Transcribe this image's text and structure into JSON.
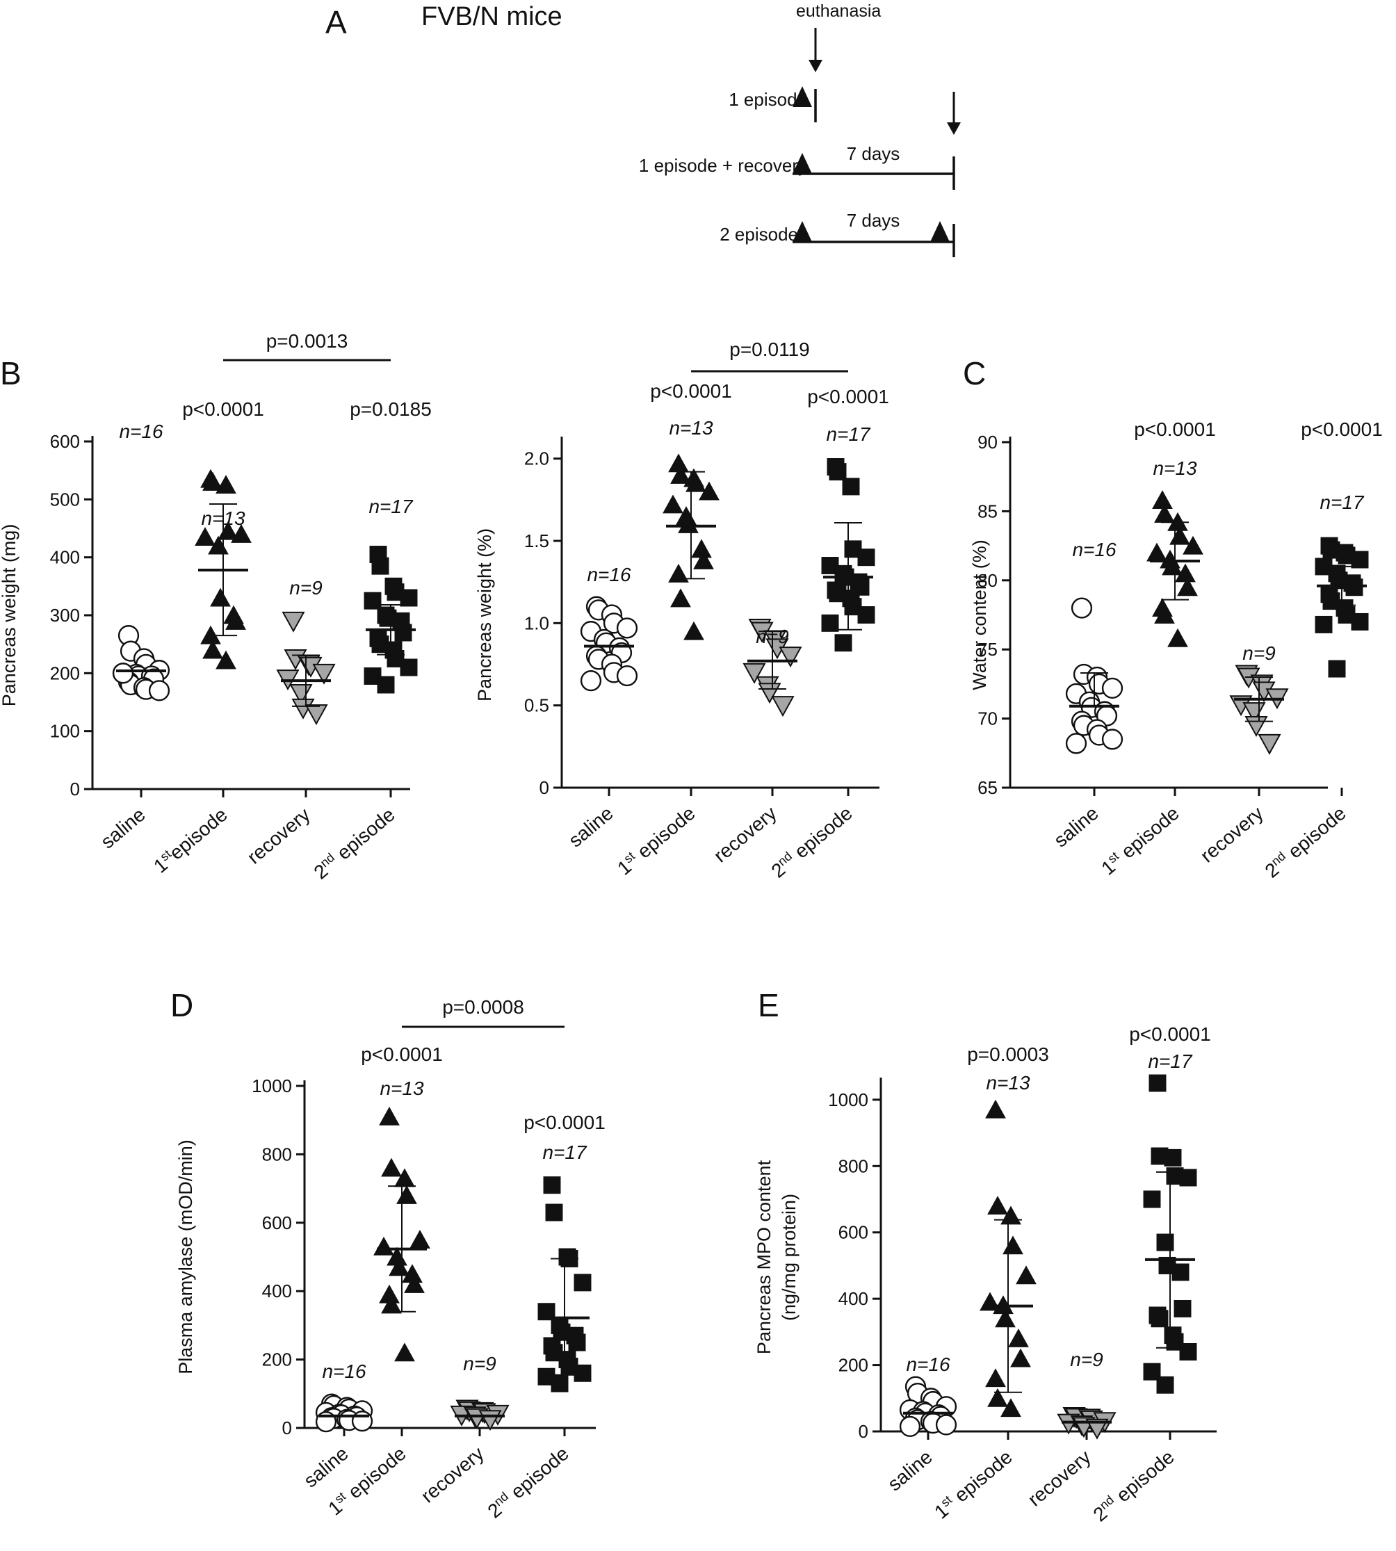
{
  "figure": {
    "colors": {
      "ink": "#111111",
      "gray": "#a6a6a6",
      "open": "#ffffff"
    },
    "panel_a": {
      "letter": "A",
      "title": "FVB/N mice",
      "euthanasia_label": "euthanasia",
      "rows": [
        {
          "label": "1 episode",
          "interval": ""
        },
        {
          "label": "1 episode + recovery",
          "interval": "7 days"
        },
        {
          "label": "2 episodes",
          "interval": "7 days"
        }
      ]
    }
  },
  "chart_data": [
    {
      "id": "B1",
      "type": "scatter",
      "letter": "B",
      "ylabel": "Pancreas weight (mg)",
      "xlabel": "",
      "ylim": [
        0,
        600
      ],
      "yticks": [
        "0",
        "100",
        "200",
        "300",
        "400",
        "500",
        "600"
      ],
      "categories": [
        {
          "label": "saline",
          "sup": "",
          "rest": ""
        },
        {
          "label": "1",
          "sup": "st",
          "rest": "episode"
        },
        {
          "label": "recovery",
          "sup": "",
          "rest": ""
        },
        {
          "label": "2",
          "sup": "nd",
          "rest": " episode"
        }
      ],
      "groups": [
        {
          "name": "saline",
          "marker": "circle",
          "n": "n=16",
          "mean": 204,
          "sd_low": 204,
          "sd_high": 204,
          "pvalue": "",
          "values": [
            265,
            238,
            225,
            215,
            205,
            200,
            198,
            195,
            195,
            190,
            185,
            180,
            175,
            172,
            170,
            200
          ]
        },
        {
          "name": "1st episode",
          "marker": "triangle",
          "n": "n=13",
          "mean": 378,
          "sd_low": 265,
          "sd_high": 492,
          "pvalue": "p<0.0001",
          "values": [
            535,
            530,
            525,
            445,
            440,
            435,
            420,
            330,
            300,
            290,
            265,
            240,
            222
          ]
        },
        {
          "name": "recovery",
          "marker": "triangle-down",
          "n": "n=9",
          "mean": 187,
          "sd_low": 143,
          "sd_high": 231,
          "pvalue": "",
          "values": [
            290,
            225,
            215,
            212,
            200,
            190,
            165,
            140,
            130
          ]
        },
        {
          "name": "2nd episode",
          "marker": "square",
          "n": "n=17",
          "mean": 275,
          "sd_low": 232,
          "sd_high": 318,
          "pvalue": "p=0.0185",
          "values": [
            405,
            385,
            350,
            340,
            330,
            325,
            300,
            295,
            290,
            270,
            260,
            250,
            240,
            225,
            210,
            195,
            180
          ]
        }
      ],
      "comparisons": [
        {
          "from": 1,
          "to": 3,
          "label": "p=0.0013"
        }
      ]
    },
    {
      "id": "B2",
      "type": "scatter",
      "letter": "",
      "ylabel": "Pancreas weight (%)",
      "xlabel": "",
      "ylim": [
        0,
        2.1
      ],
      "yticks": [
        "0",
        "0.5",
        "1.0",
        "1.5",
        "2.0"
      ],
      "categories": [
        {
          "label": "saline",
          "sup": "",
          "rest": ""
        },
        {
          "label": "1",
          "sup": "st",
          "rest": " episode"
        },
        {
          "label": "recovery",
          "sup": "",
          "rest": ""
        },
        {
          "label": "2",
          "sup": "nd",
          "rest": " episode"
        }
      ],
      "groups": [
        {
          "name": "saline",
          "marker": "circle",
          "n": "n=16",
          "mean": 0.86,
          "sd_low": 0.86,
          "sd_high": 0.86,
          "pvalue": "",
          "values": [
            1.1,
            1.08,
            1.05,
            1.0,
            0.97,
            0.95,
            0.9,
            0.88,
            0.85,
            0.82,
            0.8,
            0.78,
            0.75,
            0.7,
            0.68,
            0.65
          ]
        },
        {
          "name": "1st episode",
          "marker": "triangle",
          "n": "n=13",
          "mean": 1.59,
          "sd_low": 1.27,
          "sd_high": 1.92,
          "pvalue": "p<0.0001",
          "values": [
            1.97,
            1.9,
            1.88,
            1.85,
            1.8,
            1.72,
            1.65,
            1.6,
            1.45,
            1.38,
            1.3,
            1.15,
            0.95
          ]
        },
        {
          "name": "recovery",
          "marker": "triangle-down",
          "n": "n=9",
          "mean": 0.77,
          "sd_low": 0.6,
          "sd_high": 0.95,
          "pvalue": "",
          "values": [
            0.97,
            0.95,
            0.9,
            0.85,
            0.8,
            0.7,
            0.62,
            0.58,
            0.5
          ]
        },
        {
          "name": "2nd episode",
          "marker": "square",
          "n": "n=17",
          "mean": 1.28,
          "sd_low": 0.96,
          "sd_high": 1.61,
          "pvalue": "p<0.0001",
          "values": [
            1.95,
            1.92,
            1.83,
            1.45,
            1.4,
            1.35,
            1.3,
            1.28,
            1.25,
            1.22,
            1.2,
            1.18,
            1.15,
            1.1,
            1.05,
            1.0,
            0.88
          ]
        }
      ],
      "comparisons": [
        {
          "from": 1,
          "to": 3,
          "label": "p=0.0119"
        }
      ]
    },
    {
      "id": "C",
      "type": "scatter",
      "letter": "C",
      "ylabel": "Water content (%)",
      "xlabel": "",
      "ylim": [
        65,
        90
      ],
      "yticks": [
        "65",
        "70",
        "75",
        "80",
        "85",
        "90"
      ],
      "categories": [
        {
          "label": "saline",
          "sup": "",
          "rest": ""
        },
        {
          "label": "1",
          "sup": "st",
          "rest": " episode"
        },
        {
          "label": "recovery",
          "sup": "",
          "rest": ""
        },
        {
          "label": "2",
          "sup": "nd",
          "rest": " episode"
        }
      ],
      "groups": [
        {
          "name": "saline",
          "marker": "circle",
          "n": "n=16",
          "mean": 70.9,
          "sd_low": 70.9,
          "sd_high": 73.3,
          "pvalue": "",
          "values": [
            78,
            73.2,
            73,
            72.5,
            72.2,
            71.8,
            71.2,
            70.8,
            70.5,
            70.2,
            69.8,
            69.5,
            69.2,
            68.8,
            68.5,
            68.2
          ]
        },
        {
          "name": "1st episode",
          "marker": "triangle",
          "n": "n=13",
          "mean": 81.4,
          "sd_low": 78.6,
          "sd_high": 84.2,
          "pvalue": "p<0.0001",
          "values": [
            85.8,
            84.8,
            84.2,
            83.2,
            82.5,
            82,
            81.5,
            81,
            80.5,
            79.5,
            78,
            77.5,
            75.8
          ]
        },
        {
          "name": "recovery",
          "marker": "triangle-down",
          "n": "n=9",
          "mean": 71.4,
          "sd_low": 69.8,
          "sd_high": 73,
          "pvalue": "",
          "values": [
            73.2,
            73,
            72.5,
            72,
            71.5,
            71,
            70.5,
            69.5,
            68.2
          ]
        },
        {
          "name": "2nd episode",
          "marker": "square",
          "n": "n=17",
          "mean": 79.6,
          "sd_low": 78.2,
          "sd_high": 81,
          "pvalue": "p<0.0001",
          "values": [
            82.5,
            82.2,
            82,
            81.8,
            81.5,
            81,
            80.5,
            80,
            79.8,
            79.5,
            79,
            78.5,
            78,
            77.5,
            77,
            76.8,
            73.6
          ]
        }
      ],
      "comparisons": []
    },
    {
      "id": "D",
      "type": "scatter",
      "letter": "D",
      "ylabel": "Plasma amylase (mOD/min)",
      "xlabel": "",
      "ylim": [
        0,
        1000
      ],
      "yticks": [
        "0",
        "200",
        "400",
        "600",
        "800",
        "1000"
      ],
      "categories": [
        {
          "label": "saline",
          "sup": "",
          "rest": ""
        },
        {
          "label": "1",
          "sup": "st",
          "rest": " episode"
        },
        {
          "label": "recovery",
          "sup": "",
          "rest": ""
        },
        {
          "label": "2",
          "sup": "nd",
          "rest": " episode"
        }
      ],
      "groups": [
        {
          "name": "saline",
          "marker": "circle",
          "n": "n=16",
          "mean": 35,
          "sd_low": 35,
          "sd_high": 35,
          "pvalue": "",
          "values": [
            70,
            65,
            60,
            55,
            50,
            45,
            40,
            38,
            35,
            32,
            30,
            28,
            25,
            22,
            20,
            18
          ]
        },
        {
          "name": "1st episode",
          "marker": "triangle",
          "n": "n=13",
          "mean": 523,
          "sd_low": 340,
          "sd_high": 707,
          "pvalue": "p<0.0001",
          "values": [
            910,
            760,
            730,
            680,
            550,
            530,
            500,
            470,
            450,
            420,
            390,
            360,
            220
          ]
        },
        {
          "name": "recovery",
          "marker": "triangle-down",
          "n": "n=9",
          "mean": 35,
          "sd_low": 35,
          "sd_high": 35,
          "pvalue": "",
          "values": [
            55,
            50,
            48,
            45,
            40,
            38,
            35,
            30,
            25
          ]
        },
        {
          "name": "2nd episode",
          "marker": "square",
          "n": "n=17",
          "mean": 322,
          "sd_low": 155,
          "sd_high": 495,
          "pvalue": "p<0.0001",
          "values": [
            710,
            630,
            500,
            495,
            425,
            340,
            300,
            280,
            270,
            250,
            240,
            220,
            200,
            180,
            160,
            150,
            130
          ]
        }
      ],
      "comparisons": [
        {
          "from": 1,
          "to": 3,
          "label": "p=0.0008"
        }
      ]
    },
    {
      "id": "E",
      "type": "scatter",
      "letter": "E",
      "ylabel": "Pancreas MPO content",
      "ylabel2": "(ng/mg protein)",
      "xlabel": "",
      "ylim": [
        0,
        1050
      ],
      "yticks": [
        "0",
        "200",
        "400",
        "600",
        "800",
        "1000"
      ],
      "categories": [
        {
          "label": "saline",
          "sup": "",
          "rest": ""
        },
        {
          "label": "1",
          "sup": "st",
          "rest": " episode"
        },
        {
          "label": "recovery",
          "sup": "",
          "rest": ""
        },
        {
          "label": "2",
          "sup": "nd",
          "rest": " episode"
        }
      ],
      "groups": [
        {
          "name": "saline",
          "marker": "circle",
          "n": "n=16",
          "mean": 55,
          "sd_low": 55,
          "sd_high": 55,
          "pvalue": "",
          "values": [
            135,
            115,
            100,
            90,
            75,
            65,
            60,
            55,
            50,
            45,
            40,
            35,
            30,
            25,
            20,
            15
          ]
        },
        {
          "name": "1st episode",
          "marker": "triangle",
          "n": "n=13",
          "mean": 378,
          "sd_low": 118,
          "sd_high": 638,
          "pvalue": "p=0.0003",
          "values": [
            970,
            680,
            650,
            560,
            470,
            390,
            380,
            340,
            280,
            220,
            160,
            100,
            70
          ]
        },
        {
          "name": "recovery",
          "marker": "triangle-down",
          "n": "n=9",
          "mean": 28,
          "sd_low": 28,
          "sd_high": 28,
          "pvalue": "",
          "values": [
            45,
            42,
            40,
            35,
            30,
            25,
            20,
            15,
            10
          ]
        },
        {
          "name": "2nd episode",
          "marker": "square",
          "n": "n=17",
          "mean": 518,
          "sd_low": 252,
          "sd_high": 782,
          "pvalue": "p<0.0001",
          "values": [
            1050,
            830,
            825,
            770,
            765,
            700,
            570,
            500,
            480,
            370,
            350,
            340,
            290,
            270,
            240,
            180,
            140
          ]
        }
      ],
      "comparisons": []
    }
  ]
}
